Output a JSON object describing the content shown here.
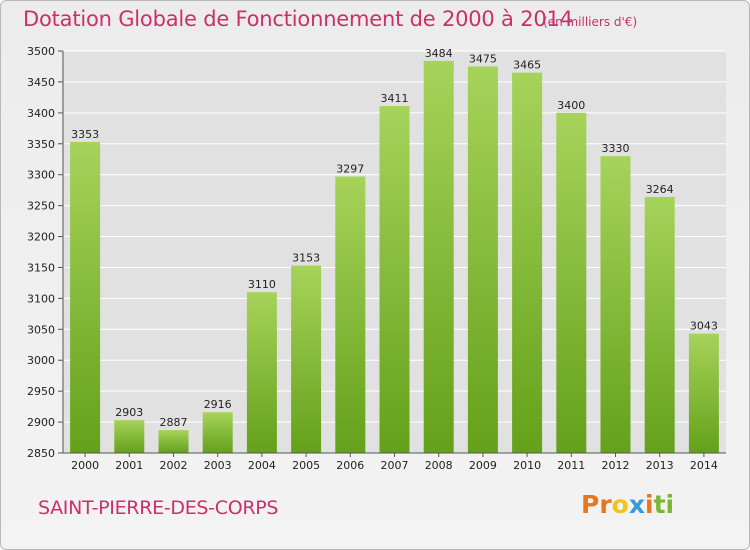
{
  "header": {
    "title": "Dotation Globale de Fonctionnement de 2000 à 2014",
    "unit": "(en milliers d'€)"
  },
  "footer": {
    "place": "SAINT-PIERRE-DES-CORPS",
    "logo_letters": [
      "P",
      "r",
      "o",
      "x",
      "i",
      "t",
      "i"
    ]
  },
  "colors": {
    "title": "#cc2f6a",
    "bar_top": "#a6d35a",
    "bar_bottom": "#64a11a",
    "logo": [
      "#e8761c",
      "#e8761c",
      "#f0c419",
      "#3a9ad9",
      "#e8761c",
      "#7ab638",
      "#7ab638"
    ]
  },
  "chart_data": {
    "type": "bar",
    "title": "Dotation Globale de Fonctionnement de 2000 à 2014",
    "subtitle": "(en milliers d'€)",
    "categories": [
      "2000",
      "2001",
      "2002",
      "2003",
      "2004",
      "2005",
      "2006",
      "2007",
      "2008",
      "2009",
      "2010",
      "2011",
      "2012",
      "2013",
      "2014"
    ],
    "values": [
      3353,
      2903,
      2887,
      2916,
      3110,
      3153,
      3297,
      3411,
      3484,
      3475,
      3465,
      3400,
      3330,
      3264,
      3043
    ],
    "ylim": [
      2850,
      3500
    ],
    "yticks": [
      2850,
      2900,
      2950,
      3000,
      3050,
      3100,
      3150,
      3200,
      3250,
      3300,
      3350,
      3400,
      3450,
      3500
    ],
    "grid": true,
    "xlabel": "",
    "ylabel": ""
  }
}
